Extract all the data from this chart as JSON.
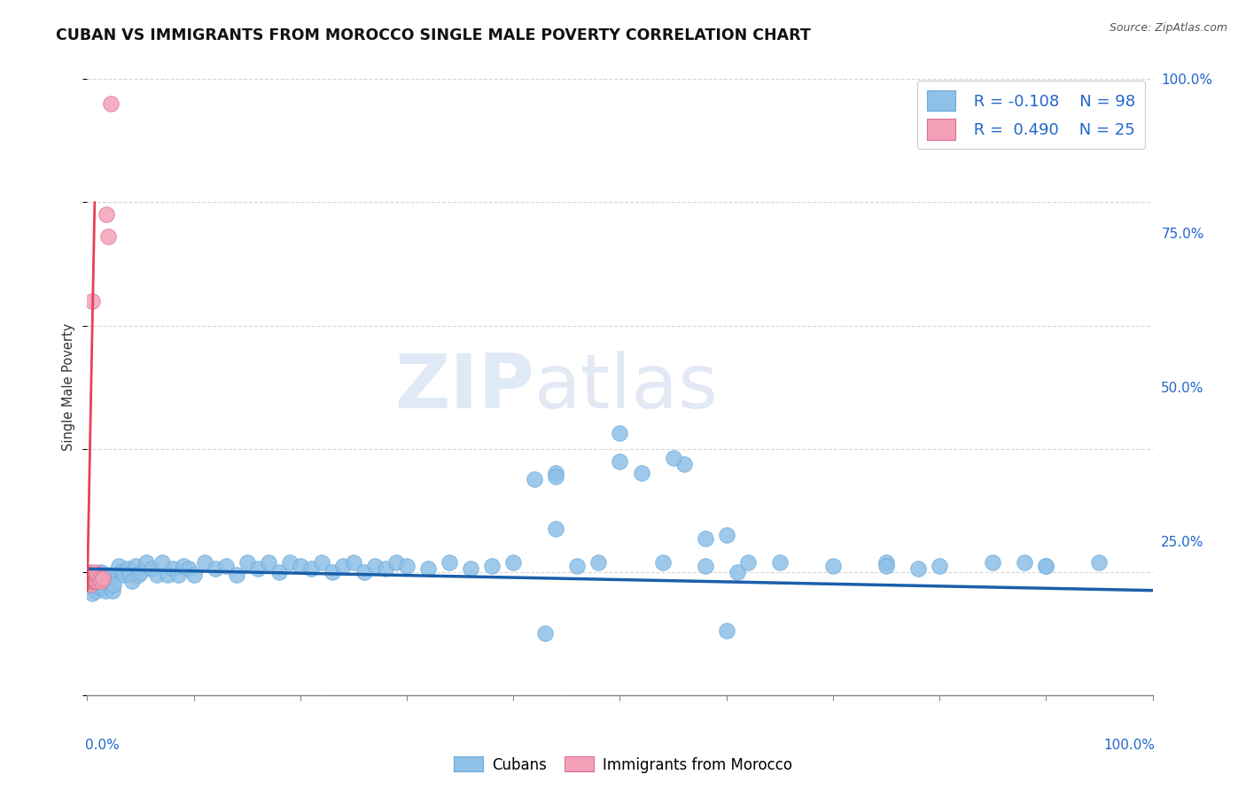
{
  "title": "CUBAN VS IMMIGRANTS FROM MOROCCO SINGLE MALE POVERTY CORRELATION CHART",
  "source": "Source: ZipAtlas.com",
  "ylabel": "Single Male Poverty",
  "legend_label1": "Cubans",
  "legend_label2": "Immigrants from Morocco",
  "R1": -0.108,
  "N1": 98,
  "R2": 0.49,
  "N2": 25,
  "color_cubans": "#8ec0e8",
  "color_morocco": "#f4a0b8",
  "color_line_cubans": "#1a5faa",
  "color_line_morocco": "#e8405a",
  "background_color": "#ffffff",
  "watermark_zip": "ZIP",
  "watermark_atlas": "atlas",
  "xmin": 0.0,
  "xmax": 1.0,
  "ymin": 0.0,
  "ymax": 1.0,
  "right_yticks": [
    0.0,
    0.25,
    0.5,
    0.75,
    1.0
  ],
  "right_yticklabels": [
    "",
    "25.0%",
    "50.0%",
    "75.0%",
    "100.0%"
  ],
  "cubans_x": [
    0.002,
    0.003,
    0.004,
    0.005,
    0.006,
    0.007,
    0.008,
    0.009,
    0.01,
    0.011,
    0.012,
    0.013,
    0.014,
    0.015,
    0.016,
    0.017,
    0.018,
    0.019,
    0.02,
    0.021,
    0.022,
    0.023,
    0.024,
    0.025,
    0.03,
    0.032,
    0.035,
    0.038,
    0.04,
    0.042,
    0.045,
    0.048,
    0.05,
    0.055,
    0.06,
    0.065,
    0.07,
    0.075,
    0.08,
    0.085,
    0.09,
    0.095,
    0.1,
    0.11,
    0.12,
    0.13,
    0.14,
    0.15,
    0.16,
    0.17,
    0.18,
    0.19,
    0.2,
    0.21,
    0.22,
    0.23,
    0.24,
    0.25,
    0.26,
    0.27,
    0.28,
    0.29,
    0.3,
    0.32,
    0.34,
    0.36,
    0.38,
    0.4,
    0.42,
    0.44,
    0.46,
    0.48,
    0.5,
    0.52,
    0.54,
    0.56,
    0.58,
    0.6,
    0.65,
    0.7,
    0.75,
    0.8,
    0.85,
    0.9,
    0.95,
    0.44,
    0.5,
    0.55,
    0.43,
    0.58,
    0.61,
    0.62,
    0.75,
    0.78,
    0.88,
    0.9,
    0.44,
    0.6
  ],
  "cubans_y": [
    0.195,
    0.185,
    0.175,
    0.165,
    0.195,
    0.18,
    0.17,
    0.185,
    0.19,
    0.18,
    0.175,
    0.2,
    0.185,
    0.195,
    0.175,
    0.17,
    0.185,
    0.195,
    0.19,
    0.178,
    0.185,
    0.195,
    0.17,
    0.18,
    0.21,
    0.2,
    0.195,
    0.205,
    0.195,
    0.185,
    0.21,
    0.195,
    0.2,
    0.215,
    0.205,
    0.195,
    0.215,
    0.195,
    0.205,
    0.195,
    0.21,
    0.205,
    0.195,
    0.215,
    0.205,
    0.21,
    0.195,
    0.215,
    0.205,
    0.215,
    0.2,
    0.215,
    0.21,
    0.205,
    0.215,
    0.2,
    0.21,
    0.215,
    0.2,
    0.21,
    0.205,
    0.215,
    0.21,
    0.205,
    0.215,
    0.205,
    0.21,
    0.215,
    0.35,
    0.36,
    0.21,
    0.215,
    0.38,
    0.36,
    0.215,
    0.375,
    0.21,
    0.26,
    0.215,
    0.21,
    0.215,
    0.21,
    0.215,
    0.21,
    0.215,
    0.355,
    0.425,
    0.385,
    0.1,
    0.255,
    0.2,
    0.215,
    0.21,
    0.205,
    0.215,
    0.21,
    0.27,
    0.105
  ],
  "morocco_x": [
    0.001,
    0.002,
    0.002,
    0.003,
    0.003,
    0.003,
    0.004,
    0.004,
    0.005,
    0.005,
    0.005,
    0.006,
    0.006,
    0.007,
    0.007,
    0.008,
    0.009,
    0.01,
    0.01,
    0.012,
    0.013,
    0.015,
    0.018,
    0.02,
    0.022
  ],
  "morocco_y": [
    0.19,
    0.185,
    0.195,
    0.18,
    0.2,
    0.19,
    0.185,
    0.195,
    0.64,
    0.185,
    0.195,
    0.185,
    0.195,
    0.185,
    0.2,
    0.185,
    0.185,
    0.19,
    0.195,
    0.19,
    0.185,
    0.19,
    0.78,
    0.745,
    0.96
  ]
}
